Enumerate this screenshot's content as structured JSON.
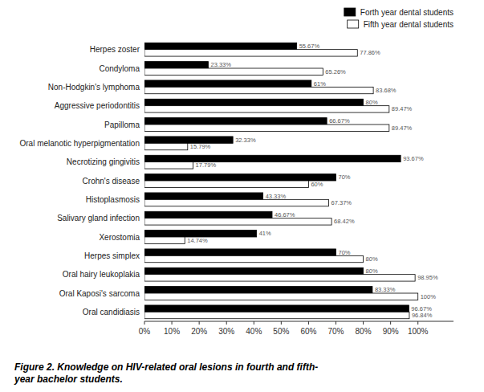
{
  "chart_data": {
    "type": "bar",
    "orientation": "horizontal",
    "title": "Figure 2. Knowledge on HIV-related oral lesions in fourth and fifth-\nyear bachelor students.",
    "categories": [
      "Oral candidiasis",
      "Oral Kaposi's sarcoma",
      "Oral hairy leukoplakia",
      "Herpes simplex",
      "Xerostomia",
      "Salivary gland infection",
      "Histoplasmosis",
      "Crohn's disease",
      "Necrotizing gingivitis",
      "Oral melanotic hyperpigmentation",
      "Papilloma",
      "Aggressive periodontitis",
      "Non-Hodgkin's lymphoma",
      "Condyloma",
      "Herpes zoster"
    ],
    "series": [
      {
        "name": "Forth year dental students",
        "color": "#000000",
        "values": [
          96.67,
          83.33,
          80.0,
          70.0,
          41.0,
          46.67,
          43.33,
          70.0,
          93.67,
          32.33,
          66.67,
          80.0,
          61.0,
          23.33,
          55.67
        ],
        "value_labels": [
          "96.67%",
          "83.33%",
          "80%",
          "70%",
          "41%",
          "46.67%",
          "43.33%",
          "70%",
          "93.67%",
          "32.33%",
          "66.67%",
          "80%",
          "61%",
          "23.33%",
          "55.67%"
        ]
      },
      {
        "name": "Fifth year dental students",
        "color": "#ffffff",
        "values": [
          96.84,
          100.0,
          98.95,
          80.0,
          14.74,
          68.42,
          67.37,
          60.0,
          17.79,
          15.79,
          89.47,
          89.47,
          83.68,
          65.26,
          77.86
        ],
        "value_labels": [
          "96.84%",
          "100%",
          "98.95%",
          "80%",
          "14.74%",
          "68.42%",
          "67.37%",
          "60%",
          "17.79%",
          "15.79%",
          "89.47%",
          "89.47%",
          "83.68%",
          "65.26%",
          "77.86%"
        ]
      }
    ],
    "xlim": [
      0,
      113
    ],
    "xticks": [
      {
        "value": 0,
        "label": "0%"
      },
      {
        "value": 10,
        "label": "10%"
      },
      {
        "value": 20,
        "label": "20%"
      },
      {
        "value": 30,
        "label": "30%"
      },
      {
        "value": 40,
        "label": "40%"
      },
      {
        "value": 50,
        "label": "50%"
      },
      {
        "value": 60,
        "label": "60%"
      },
      {
        "value": 70,
        "label": "70%"
      },
      {
        "value": 80,
        "label": "80%"
      },
      {
        "value": 90,
        "label": "90%"
      },
      {
        "value": 100,
        "label": "100%"
      }
    ],
    "grid": false,
    "legend": "upper right",
    "data_labels": true
  }
}
